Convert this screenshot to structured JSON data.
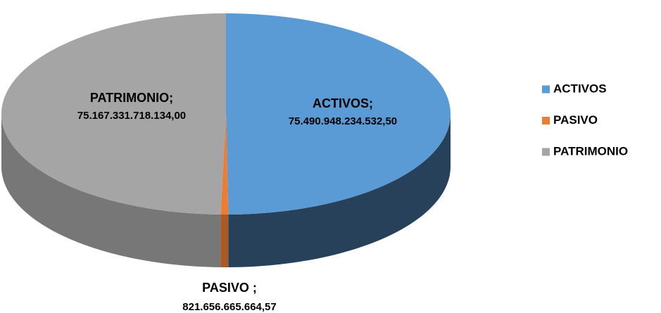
{
  "chart_data": {
    "type": "pie3d",
    "categories": [
      "ACTIVOS",
      "PASIVO",
      "PATRIMONIO"
    ],
    "values": [
      75490948234532.5,
      821656665664.57,
      75167331718134.0
    ],
    "label_names": [
      "ACTIVOS;",
      "PASIVO ;",
      "PATRIMONIO;"
    ],
    "value_labels": [
      "75.490.948.234.532,50",
      "821.656.665.664,57",
      "75.167.331.718.134,00"
    ],
    "colors": [
      "#5b9bd5",
      "#ed7d31",
      "#a5a5a5"
    ],
    "legend": "right"
  }
}
